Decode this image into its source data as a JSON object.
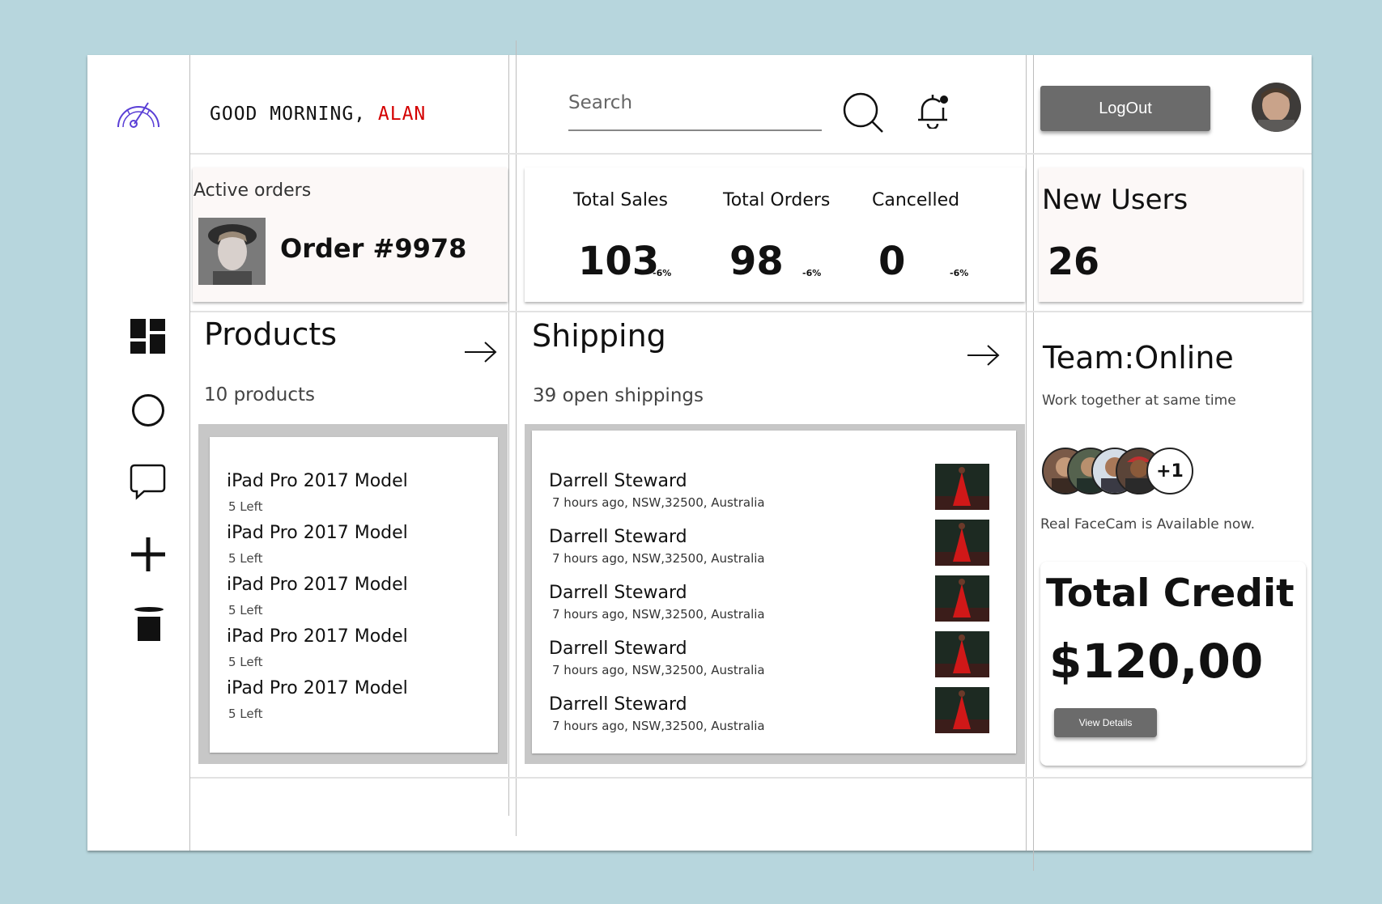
{
  "header": {
    "greeting_prefix": "GOOD MORNING, ",
    "greeting_name": "ALAN",
    "search_placeholder": "Search",
    "logout_label": "LogOut"
  },
  "active_orders": {
    "title": "Active orders",
    "order_label": "Order #9978"
  },
  "stats": [
    {
      "label": "Total Sales",
      "value": "103",
      "change": "-6%"
    },
    {
      "label": "Total Orders",
      "value": "98",
      "change": "-6%"
    },
    {
      "label": "Cancelled",
      "value": "0",
      "change": "-6%"
    }
  ],
  "new_users": {
    "title": "New Users",
    "value": "26"
  },
  "products": {
    "title": "Products",
    "subtitle": "10 products",
    "items": [
      {
        "name": "iPad Pro 2017 Model",
        "stock": "5 Left"
      },
      {
        "name": "iPad Pro 2017 Model",
        "stock": "5 Left"
      },
      {
        "name": "iPad Pro 2017 Model",
        "stock": "5 Left"
      },
      {
        "name": "iPad Pro 2017 Model",
        "stock": "5 Left"
      },
      {
        "name": "iPad Pro 2017 Model",
        "stock": "5 Left"
      }
    ]
  },
  "shipping": {
    "title": "Shipping",
    "subtitle": "39 open shippings",
    "items": [
      {
        "name": "Darrell Steward",
        "detail": "7 hours ago, NSW,32500, Australia"
      },
      {
        "name": "Darrell Steward",
        "detail": "7 hours ago, NSW,32500, Australia"
      },
      {
        "name": "Darrell Steward",
        "detail": "7 hours ago, NSW,32500, Australia"
      },
      {
        "name": "Darrell Steward",
        "detail": "7 hours ago, NSW,32500, Australia"
      },
      {
        "name": "Darrell Steward",
        "detail": "7 hours ago, NSW,32500, Australia"
      }
    ]
  },
  "team": {
    "title": "Team:Online",
    "subtitle": "Work together at same time",
    "extra_count": "+1",
    "facecam_note": "Real FaceCam is Available now."
  },
  "credit": {
    "title": "Total Credit",
    "amount": "$120,00",
    "button_label": "View Details"
  },
  "colors": {
    "background": "#b7d6dd",
    "accent_name": "#d40000",
    "button_gray": "#6b6b6b",
    "logo_purple": "#5a3fd6"
  }
}
